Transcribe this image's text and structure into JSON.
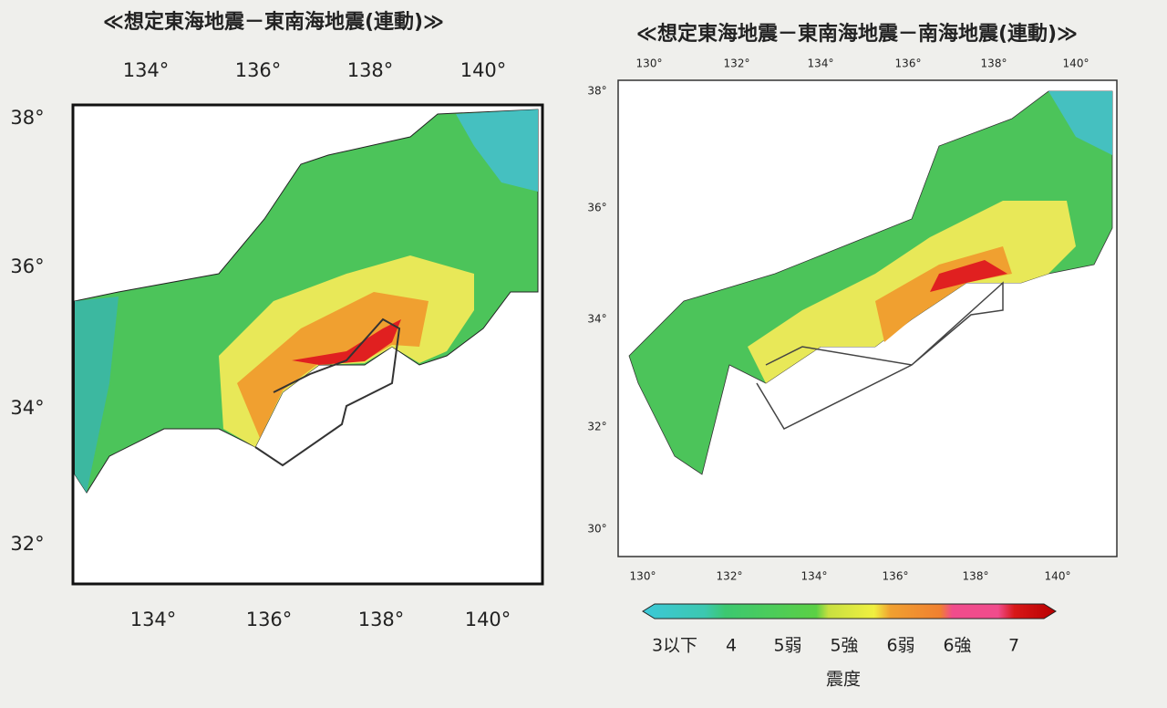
{
  "left_map": {
    "title": "≪想定東海地震－東南海地震(連動)≫",
    "top_ticks": [
      "134°",
      "136°",
      "138°",
      "140°"
    ],
    "left_ticks": [
      "38°",
      "36°",
      "34°",
      "32°"
    ],
    "bottom_ticks": [
      "134°",
      "136°",
      "138°",
      "140°"
    ]
  },
  "right_map": {
    "title": "≪想定東海地震－東南海地震－南海地震(連動)≫",
    "top_ticks": [
      "130°",
      "132°",
      "134°",
      "136°",
      "138°",
      "140°"
    ],
    "left_ticks": [
      "38°",
      "36°",
      "34°",
      "32°",
      "30°"
    ],
    "bottom_ticks": [
      "130°",
      "132°",
      "134°",
      "136°",
      "138°",
      "140°"
    ]
  },
  "legend": {
    "labels": [
      "3以下",
      "4",
      "5弱",
      "5強",
      "6弱",
      "6強",
      "7"
    ],
    "title": "震度"
  }
}
